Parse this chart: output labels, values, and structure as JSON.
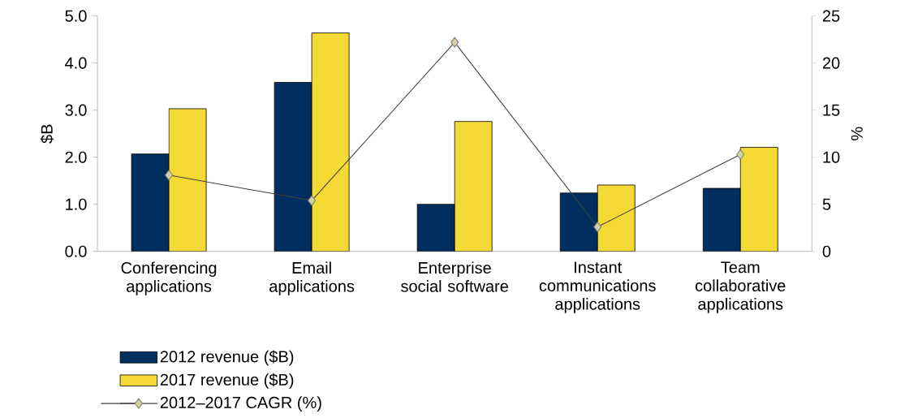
{
  "chart_data": {
    "type": "bar",
    "ylabel": "$B",
    "y2label": "%",
    "categories": [
      "Conferencing applications",
      "Email applications",
      "Enterprise social software",
      "Instant communications applications",
      "Team collaborative applications"
    ],
    "series": [
      {
        "name": "2012 revenue ($B)",
        "color": "#002f5f",
        "values": [
          2.07,
          3.59,
          1.0,
          1.24,
          1.34
        ]
      },
      {
        "name": "2017 revenue ($B)",
        "color": "#f5d935",
        "values": [
          3.03,
          4.64,
          2.76,
          1.41,
          2.21
        ]
      },
      {
        "name": "2012–2017 CAGR (%)",
        "type": "line",
        "axis": "y2",
        "color": "#404040",
        "marker": "diamond",
        "values": [
          8.1,
          5.4,
          22.2,
          2.6,
          10.3
        ]
      }
    ],
    "ylim": [
      0,
      5
    ],
    "yticks": [
      {
        "value": 0,
        "label": "0.0"
      },
      {
        "value": 1,
        "label": "1.0"
      },
      {
        "value": 2,
        "label": "2.0"
      },
      {
        "value": 3,
        "label": "3.0"
      },
      {
        "value": 4,
        "label": "4.0"
      },
      {
        "value": 5,
        "label": "5.0"
      }
    ],
    "y2lim": [
      0,
      25
    ],
    "y2ticks": [
      0,
      5,
      10,
      15,
      20,
      25
    ],
    "legend": "bottom",
    "grid": false
  }
}
